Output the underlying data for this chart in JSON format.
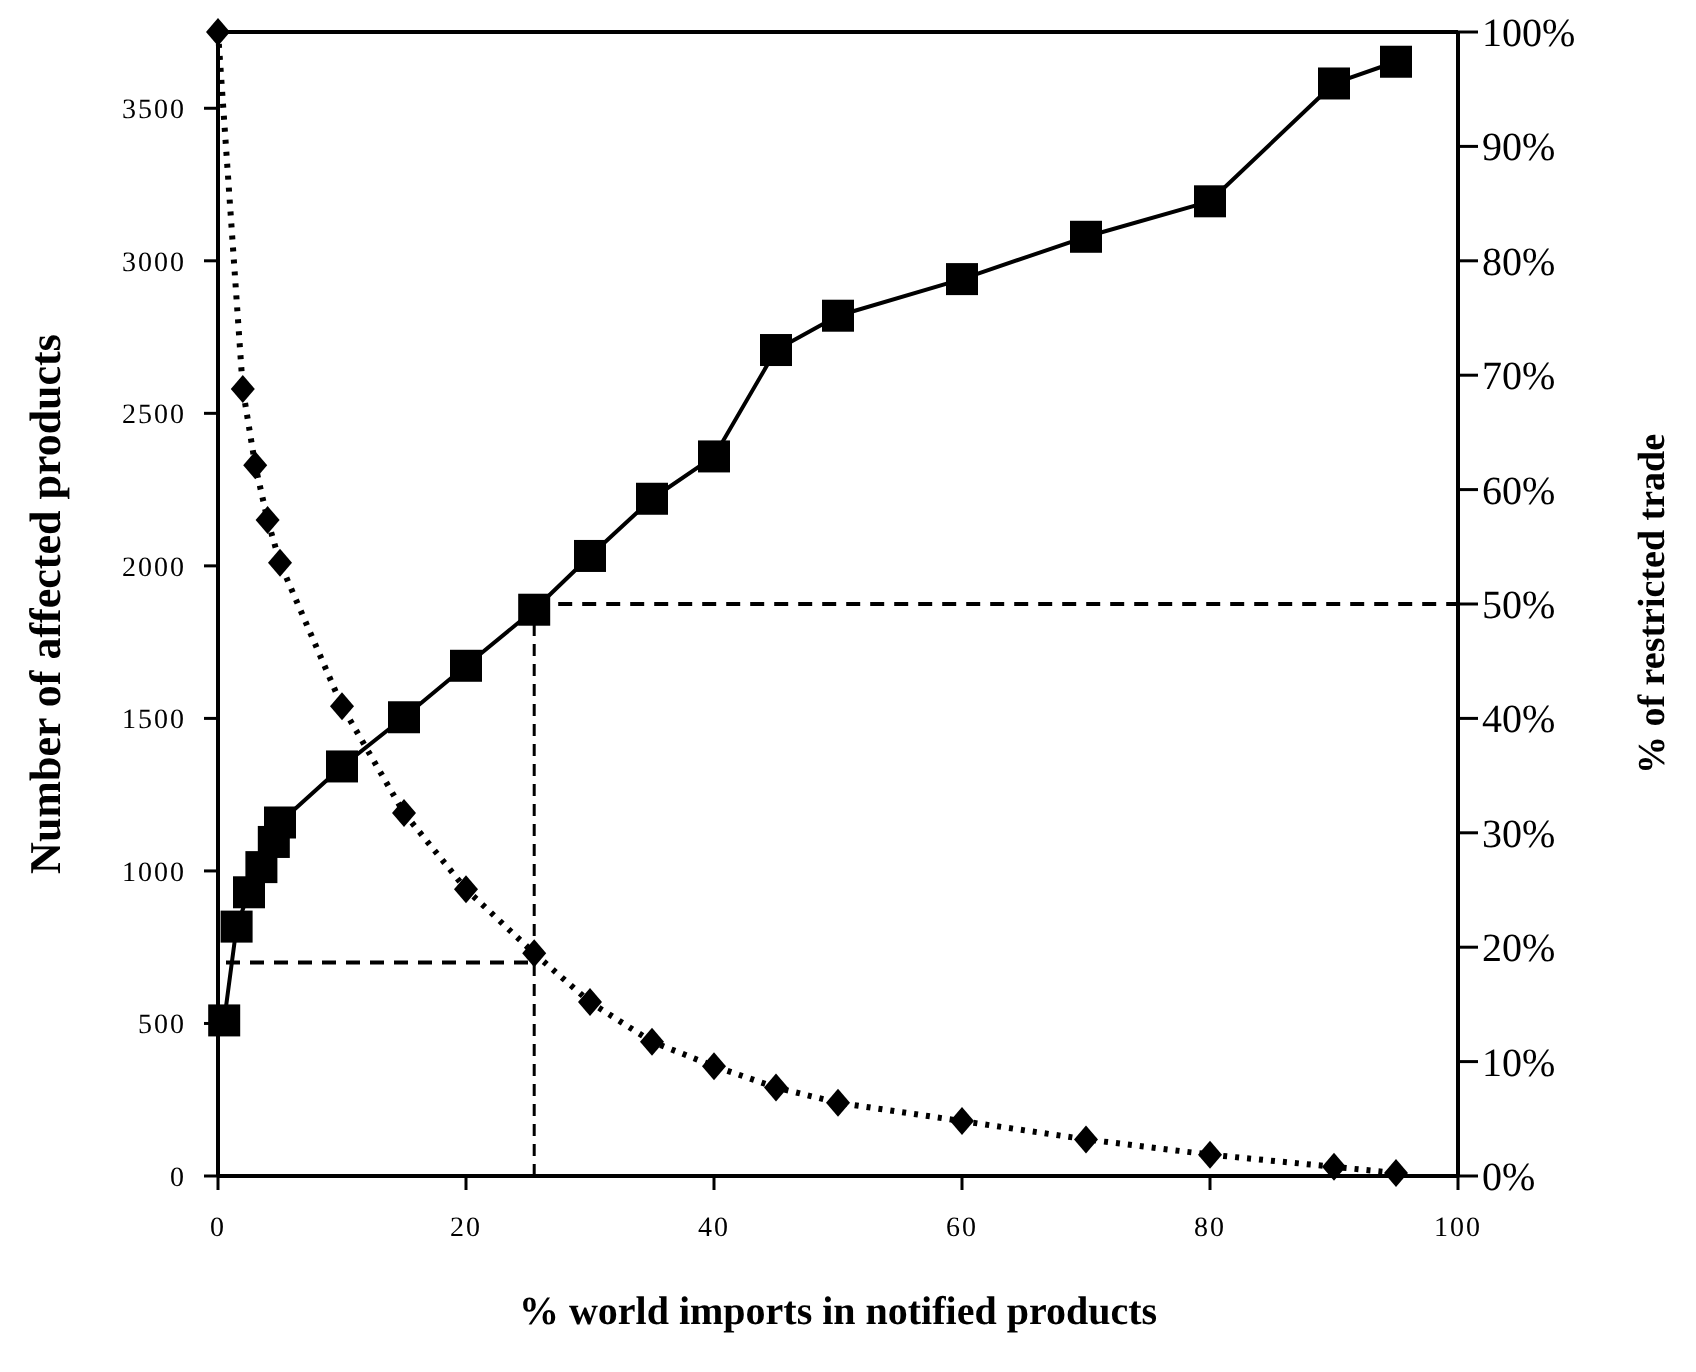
{
  "chart_data": {
    "type": "line",
    "xlabel": "% world imports in notified products",
    "ylabel": "Number of affected products",
    "y2label": "% of restricted trade",
    "xlim": [
      0,
      100
    ],
    "xticks": [
      0,
      20,
      40,
      60,
      80,
      100
    ],
    "ylim": [
      0,
      3750
    ],
    "yticks": [
      0,
      500,
      1000,
      1500,
      2000,
      2500,
      3000,
      3500
    ],
    "y2lim": [
      0,
      100
    ],
    "y2ticks": [
      {
        "value": 0,
        "label": "0%"
      },
      {
        "value": 10,
        "label": "10%"
      },
      {
        "value": 20,
        "label": "20%"
      },
      {
        "value": 30,
        "label": "30%"
      },
      {
        "value": 40,
        "label": "40%"
      },
      {
        "value": 50,
        "label": "50%"
      },
      {
        "value": 60,
        "label": "60%"
      },
      {
        "value": 70,
        "label": "70%"
      },
      {
        "value": 80,
        "label": "80%"
      },
      {
        "value": 90,
        "label": "90%"
      },
      {
        "value": 100,
        "label": "100%"
      }
    ],
    "grid": false,
    "series": [
      {
        "color": "#000000",
        "marker": "diamond",
        "line_style": "dotted",
        "x": [
          0,
          2,
          3,
          4,
          5,
          10,
          15,
          20,
          25.5,
          30,
          35,
          40,
          45,
          50,
          60,
          70,
          80,
          90,
          95
        ],
        "values": [
          3750,
          2580,
          2330,
          2150,
          2010,
          1540,
          1190,
          940,
          730,
          570,
          440,
          360,
          290,
          240,
          180,
          120,
          70,
          30,
          10
        ]
      },
      {
        "color": "#000000",
        "marker": "square",
        "line_style": "solid",
        "axis": "y2",
        "x": [
          0.5,
          1.5,
          2.5,
          3.5,
          4.5,
          5,
          10,
          15,
          20,
          25.5,
          30,
          35,
          40,
          45,
          50,
          60,
          70,
          80,
          90,
          95
        ],
        "values": [
          13.6,
          21.8,
          24.8,
          27,
          29.2,
          30.9,
          35.8,
          40.1,
          44.6,
          49.5,
          54.2,
          59.2,
          62.9,
          72.2,
          75.2,
          78.4,
          82.1,
          85.2,
          95.5,
          97.4
        ]
      }
    ],
    "ref_lines": [
      {
        "axis": "x",
        "value": 25.5,
        "line_style": "dashed",
        "color": "#000000"
      },
      {
        "axis": "y",
        "value": 700,
        "line_style": "dashed",
        "color": "#000000"
      },
      {
        "axis": "y2",
        "value": 50,
        "line_style": "dashed",
        "color": "#000000"
      }
    ]
  }
}
